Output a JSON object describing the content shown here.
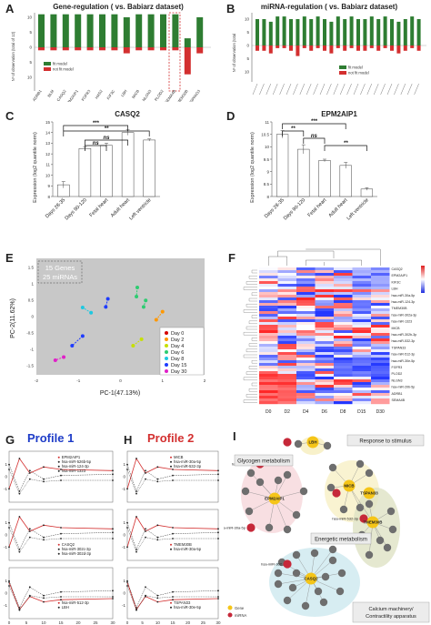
{
  "panels": {
    "A": {
      "label": "A",
      "title": "Gene-regulation ( vs. Babiarz dataset)",
      "ylabel": "Nº of observation (total of 12)",
      "legend": [
        "fit model",
        "not fit model"
      ],
      "colors": {
        "fit": "#2e7d32",
        "notfit": "#d32f2f",
        "highlight": "#d32f2f"
      },
      "yticks": [
        "10",
        "5",
        "0",
        "5",
        "10"
      ],
      "genes": [
        "ADRB1",
        "BLM",
        "CASQ2",
        "EPM2AIP1",
        "FGFR3",
        "HAS2",
        "KIF3C",
        "LBH",
        "MICB",
        "NLGN3",
        "PLOD2",
        "SEMA4B",
        "TMEM30B",
        "TSPAN33"
      ],
      "fit": [
        11,
        11,
        11,
        11,
        11,
        11,
        11,
        10,
        11,
        11,
        11,
        11,
        3,
        10
      ],
      "notfit": [
        1,
        1,
        1,
        1,
        1,
        1,
        1,
        2,
        1,
        1,
        1,
        1,
        9,
        2
      ]
    },
    "B": {
      "label": "B",
      "title": "miRNA-regulation ( vs. Babiarz dataset)",
      "ylabel": "Nº of observation (total",
      "legend": [
        "fit model",
        "not fit model"
      ],
      "yticks": [
        "10",
        "5",
        "0",
        "5",
        "10"
      ],
      "fit": [
        10,
        10,
        9,
        11,
        11,
        10,
        10,
        11,
        10,
        11,
        10,
        9,
        11,
        10,
        11,
        10,
        10,
        11,
        10,
        11,
        10,
        9,
        10,
        11,
        10
      ],
      "notfit": [
        2,
        2,
        3,
        1,
        1,
        2,
        4,
        1,
        2,
        1,
        2,
        3,
        1,
        2,
        1,
        2,
        2,
        1,
        2,
        1,
        2,
        3,
        2,
        1,
        2
      ]
    },
    "C": {
      "label": "C",
      "title": "CASQ2",
      "ylabel": "Expression (log2 quantile norm)",
      "yticks": [
        "15",
        "14",
        "13",
        "12",
        "11",
        "10",
        "9",
        "8"
      ],
      "categories": [
        "Days 28-35",
        "Days 90-120",
        "Fetal heart",
        "Adult heart",
        "Left ventricle"
      ],
      "values": [
        9.1,
        12.5,
        12.8,
        14.0,
        13.3
      ],
      "errors": [
        0.3,
        0.15,
        0.2,
        0.25,
        0.1
      ],
      "ylim": [
        8,
        15
      ],
      "sig": [
        "***",
        "**",
        "ns",
        "ns"
      ]
    },
    "D": {
      "label": "D",
      "title": "EPM2AIP1",
      "ylabel": "Expression (log2 quantile norm)",
      "yticks": [
        "11",
        "10.5",
        "10",
        "9.5",
        "9",
        "8.5",
        "8"
      ],
      "categories": [
        "Days 28-35",
        "Days 90-120",
        "Fetal heart",
        "Adult heart",
        "Left ventricle"
      ],
      "values": [
        10.5,
        9.9,
        9.45,
        9.25,
        8.3
      ],
      "errors": [
        0.15,
        0.18,
        0.05,
        0.12,
        0.05
      ],
      "ylim": [
        8,
        11
      ],
      "sig": [
        "***",
        "**",
        "ns",
        "**",
        "*"
      ]
    },
    "E": {
      "label": "E",
      "annotation": [
        "15 Genes",
        "25 miRNAs"
      ],
      "xlabel": "PC-1(47.13%)",
      "ylabel": "PC-2(11.62%)",
      "xticks": [
        "-2",
        "-1",
        "0",
        "1",
        "2"
      ],
      "yticks": [
        "1.5",
        "1",
        "0.5",
        "0",
        "-0.5",
        "-1",
        "-1.5"
      ],
      "legend": [
        "Day 0",
        "Day 2",
        "Day 4",
        "Day 6",
        "Day 8",
        "Day 15",
        "Day 30"
      ],
      "colors": [
        "#d50000",
        "#ff9800",
        "#c6e000",
        "#2ecc71",
        "#1ec8e0",
        "#1e3cff",
        "#e020c8"
      ]
    },
    "F": {
      "label": "F",
      "columns": [
        "D0",
        "D2",
        "D4",
        "D6",
        "D8",
        "D15",
        "D30"
      ],
      "row_labels": [
        "CASQ2",
        "EPM2AIP1",
        "KIF3C",
        "LBH",
        "hsa-miR-30a-5p",
        "hsa-miR-124-3p",
        "TMEM30B",
        "hsa-miR-302a-3p",
        "hsa-miR-1323",
        "MICB",
        "hsa-miR-302b-3p",
        "hsa-miR-532-3p",
        "TSPAN33",
        "hsa-miR-512-3p",
        "hsa-miR-30e-5p",
        "FGFR3",
        "PLOD2",
        "NLGN3",
        "hsa-miR-20b-5p",
        "ADRB1",
        "SEMA4B"
      ]
    },
    "G": {
      "label": "G",
      "title": "Profile 1",
      "title_color": "#1e3cc8",
      "legends": [
        [
          "EPM2AIP1",
          "hsa-miR-526b-5p",
          "hsa-miR-124-3p",
          "hsa-miR-1323"
        ],
        [
          "CASQ2",
          "hsa-miR-302c-3p",
          "hsa-miR-302d-3p"
        ],
        [
          "hsa-miR-512-3p",
          "LBH"
        ]
      ],
      "xticks": [
        "0",
        "5",
        "10",
        "15",
        "20",
        "25",
        "30"
      ],
      "yticks": [
        "1",
        "0",
        "-1"
      ]
    },
    "H": {
      "label": "H",
      "title": "Profile 2",
      "title_color": "#d32f2f",
      "legends": [
        [
          "MICB",
          "hsa-miR-30a-5p",
          "hsa-miR-532-3p"
        ],
        [
          "TMEM30B",
          "hsa-miR-30a-5p"
        ],
        [
          "TSPAN33",
          "hsa-miR-30e-5p"
        ]
      ],
      "xticks": [
        "0",
        "5",
        "10",
        "15",
        "20",
        "25",
        "30"
      ],
      "yticks": [
        "1",
        "0",
        "-1"
      ]
    },
    "I": {
      "label": "I",
      "boxes": {
        "glycogen": "Glycogen metabolism",
        "response": "Response to stimulus",
        "energetic": "Energetic metabolism",
        "calcium": "Calcium machinery/ Contractility apparatus"
      },
      "hubs": [
        "LBH",
        "MICB",
        "TSPAN33",
        "EPM2AIP1",
        "TMEM30B",
        "CASQ2"
      ],
      "mirna_nodes": [
        "hsa-miR-1323",
        "hsa-miR-30a-5p",
        "hsa-miR-302",
        "hsa-miR-532-3p"
      ],
      "legend": [
        "Gene",
        "miRNA"
      ],
      "colors": {
        "gene": "#f5c518",
        "mirna": "#c62839",
        "go": "#6e6e6e"
      }
    }
  }
}
